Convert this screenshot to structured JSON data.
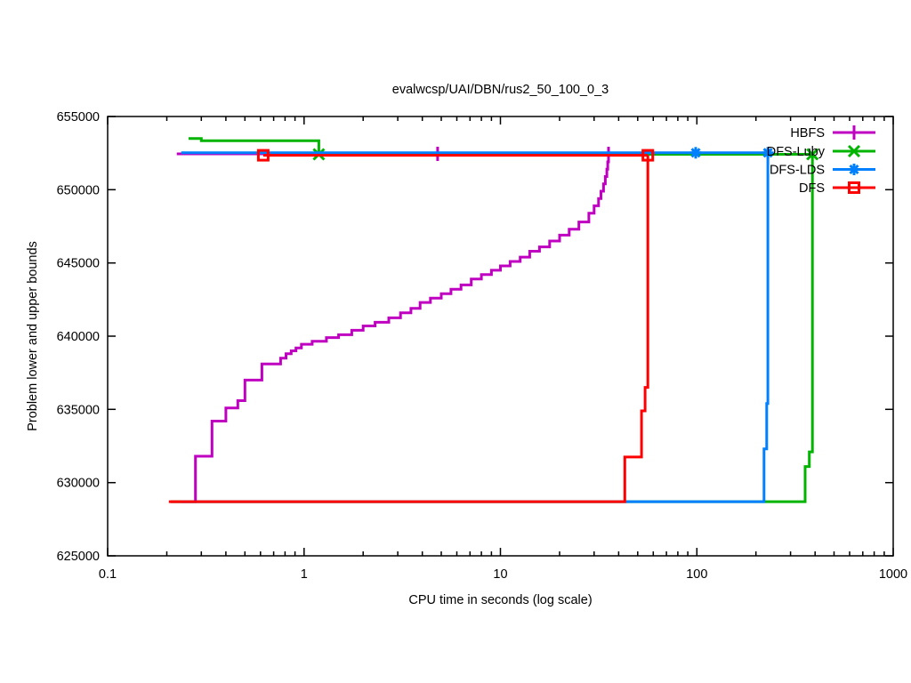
{
  "chart_data": {
    "type": "line",
    "title": "evalwcsp/UAI/DBN/rus2_50_100_0_3",
    "xlabel": "CPU time in seconds (log scale)",
    "ylabel": "Problem lower and upper bounds",
    "x_scale": "log",
    "xlim": [
      0.1,
      1000
    ],
    "ylim": [
      625000,
      655000
    ],
    "x_ticks": [
      0.1,
      1,
      10,
      100,
      1000
    ],
    "x_tick_labels": [
      "0.1",
      "1",
      "10",
      "100",
      "1000"
    ],
    "y_ticks": [
      625000,
      630000,
      635000,
      640000,
      645000,
      650000,
      655000
    ],
    "grid": false,
    "legend_position": "top-right-inside",
    "background": "#ffffff",
    "axis_color": "#000000",
    "series": [
      {
        "name": "HBFS",
        "color": "#c000c0",
        "marker": "plus",
        "upper_bound": [
          [
            0.225,
            652450
          ],
          [
            35.5,
            652450
          ]
        ],
        "lower_bound": [
          [
            0.21,
            628700
          ],
          [
            0.28,
            631800
          ],
          [
            0.34,
            634200
          ],
          [
            0.4,
            635100
          ],
          [
            0.46,
            635600
          ],
          [
            0.5,
            637000
          ],
          [
            0.61,
            638100
          ],
          [
            0.76,
            638500
          ],
          [
            0.81,
            638800
          ],
          [
            0.86,
            639000
          ],
          [
            0.91,
            639200
          ],
          [
            0.97,
            639450
          ],
          [
            1.1,
            639650
          ],
          [
            1.3,
            639900
          ],
          [
            1.5,
            640100
          ],
          [
            1.75,
            640400
          ],
          [
            2.0,
            640700
          ],
          [
            2.3,
            640950
          ],
          [
            2.7,
            641250
          ],
          [
            3.1,
            641600
          ],
          [
            3.5,
            641900
          ],
          [
            3.9,
            642300
          ],
          [
            4.4,
            642600
          ],
          [
            5.0,
            642900
          ],
          [
            5.6,
            643200
          ],
          [
            6.3,
            643500
          ],
          [
            7.1,
            643900
          ],
          [
            8.0,
            644200
          ],
          [
            9.0,
            644500
          ],
          [
            10.0,
            644800
          ],
          [
            11.2,
            645100
          ],
          [
            12.6,
            645400
          ],
          [
            14.1,
            645800
          ],
          [
            15.8,
            646100
          ],
          [
            17.8,
            646500
          ],
          [
            20.0,
            646900
          ],
          [
            22.4,
            647300
          ],
          [
            25.1,
            647800
          ],
          [
            28.2,
            648400
          ],
          [
            30.0,
            648900
          ],
          [
            31.6,
            649400
          ],
          [
            32.5,
            649900
          ],
          [
            33.5,
            650400
          ],
          [
            34.2,
            650900
          ],
          [
            34.8,
            651400
          ],
          [
            35.2,
            651900
          ],
          [
            35.5,
            652450
          ]
        ],
        "marker_points": [
          [
            4.79,
            652450
          ],
          [
            35.5,
            652450
          ]
        ]
      },
      {
        "name": "DFS-Luby",
        "color": "#00b400",
        "marker": "cross",
        "upper_bound": [
          [
            0.258,
            653500
          ],
          [
            0.3,
            653350
          ],
          [
            1.19,
            652420
          ],
          [
            388,
            652420
          ]
        ],
        "lower_bound": [
          [
            0.21,
            628700
          ],
          [
            356,
            631100
          ],
          [
            374,
            632100
          ],
          [
            388,
            652420
          ]
        ],
        "marker_points": [
          [
            1.19,
            652420
          ],
          [
            388,
            652420
          ]
        ]
      },
      {
        "name": "DFS-LDS",
        "color": "#0080ff",
        "marker": "asterisk",
        "upper_bound": [
          [
            0.237,
            652520
          ],
          [
            230,
            652520
          ]
        ],
        "lower_bound": [
          [
            0.237,
            628700
          ],
          [
            220,
            632300
          ],
          [
            227,
            635400
          ],
          [
            230,
            652520
          ]
        ],
        "marker_points": [
          [
            98.7,
            652520
          ],
          [
            230,
            652520
          ]
        ]
      },
      {
        "name": "DFS",
        "color": "#ff0000",
        "marker": "square",
        "upper_bound": [
          [
            0.62,
            652350
          ],
          [
            56.3,
            652350
          ]
        ],
        "lower_bound": [
          [
            0.205,
            628700
          ],
          [
            43,
            631750
          ],
          [
            52.3,
            634900
          ],
          [
            54.5,
            636500
          ],
          [
            56.3,
            652350
          ]
        ],
        "marker_points": [
          [
            0.62,
            652350
          ],
          [
            56.3,
            652350
          ]
        ]
      }
    ]
  }
}
